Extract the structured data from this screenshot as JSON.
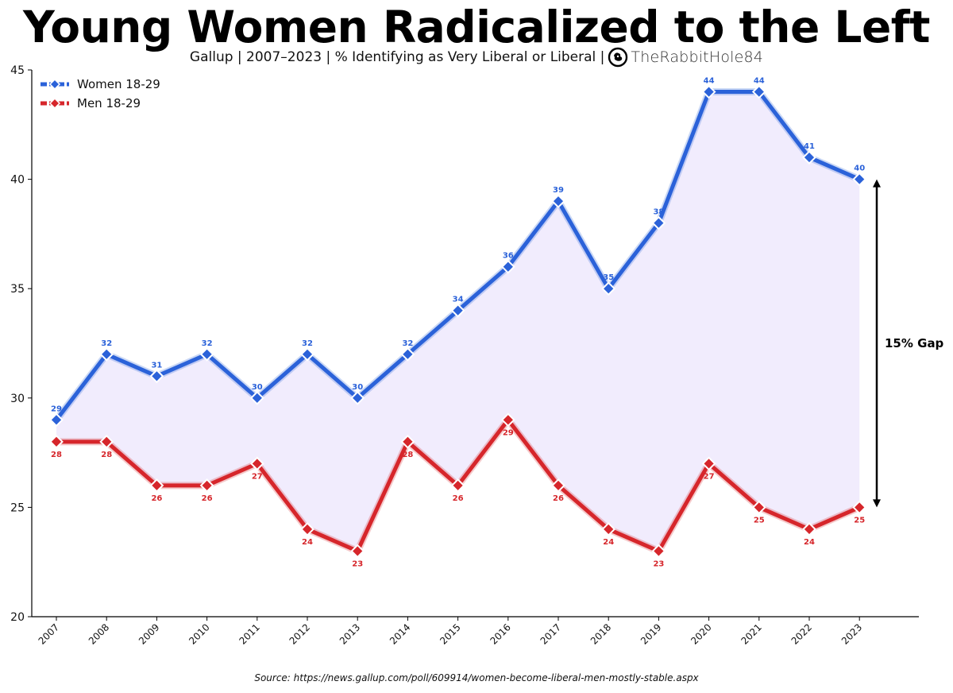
{
  "header": {
    "title": "Young Women Radicalized to the Left",
    "subtitle": "Gallup | 2007–2023  |  % Identifying as Very Liberal or Liberal |",
    "brand": "TheRabbitHole84",
    "brand_icon": "rabbit-logo-icon"
  },
  "footer": {
    "source": "Source: https://news.gallup.com/poll/609914/women-become-liberal-men-mostly-stable.aspx"
  },
  "chart_data": {
    "type": "line",
    "title": "Young Women Radicalized to the Left",
    "subtitle": "Gallup | 2007–2023  |  % Identifying as Very Liberal or Liberal",
    "xlabel": "",
    "ylabel": "",
    "categories": [
      "2007",
      "2008",
      "2009",
      "2010",
      "2011",
      "2012",
      "2013",
      "2014",
      "2015",
      "2016",
      "2017",
      "2018",
      "2019",
      "2020",
      "2021",
      "2022",
      "2023"
    ],
    "series": [
      {
        "name": "Women 18-29",
        "color": "#2b62d9",
        "values": [
          29,
          32,
          31,
          32,
          30,
          32,
          30,
          32,
          34,
          36,
          39,
          35,
          38,
          44,
          44,
          41,
          40
        ]
      },
      {
        "name": "Men 18-29",
        "color": "#d6262b",
        "values": [
          28,
          28,
          26,
          26,
          27,
          24,
          23,
          28,
          26,
          29,
          26,
          24,
          23,
          27,
          25,
          24,
          25
        ]
      }
    ],
    "ylim": [
      20,
      45
    ],
    "yticks": [
      20,
      25,
      30,
      35,
      40,
      45
    ],
    "fill_between_color": "#f1ecfd",
    "legend_position": "top-left",
    "grid": false,
    "annotation": {
      "text": "15% Gap",
      "from": 25,
      "to": 40
    }
  }
}
